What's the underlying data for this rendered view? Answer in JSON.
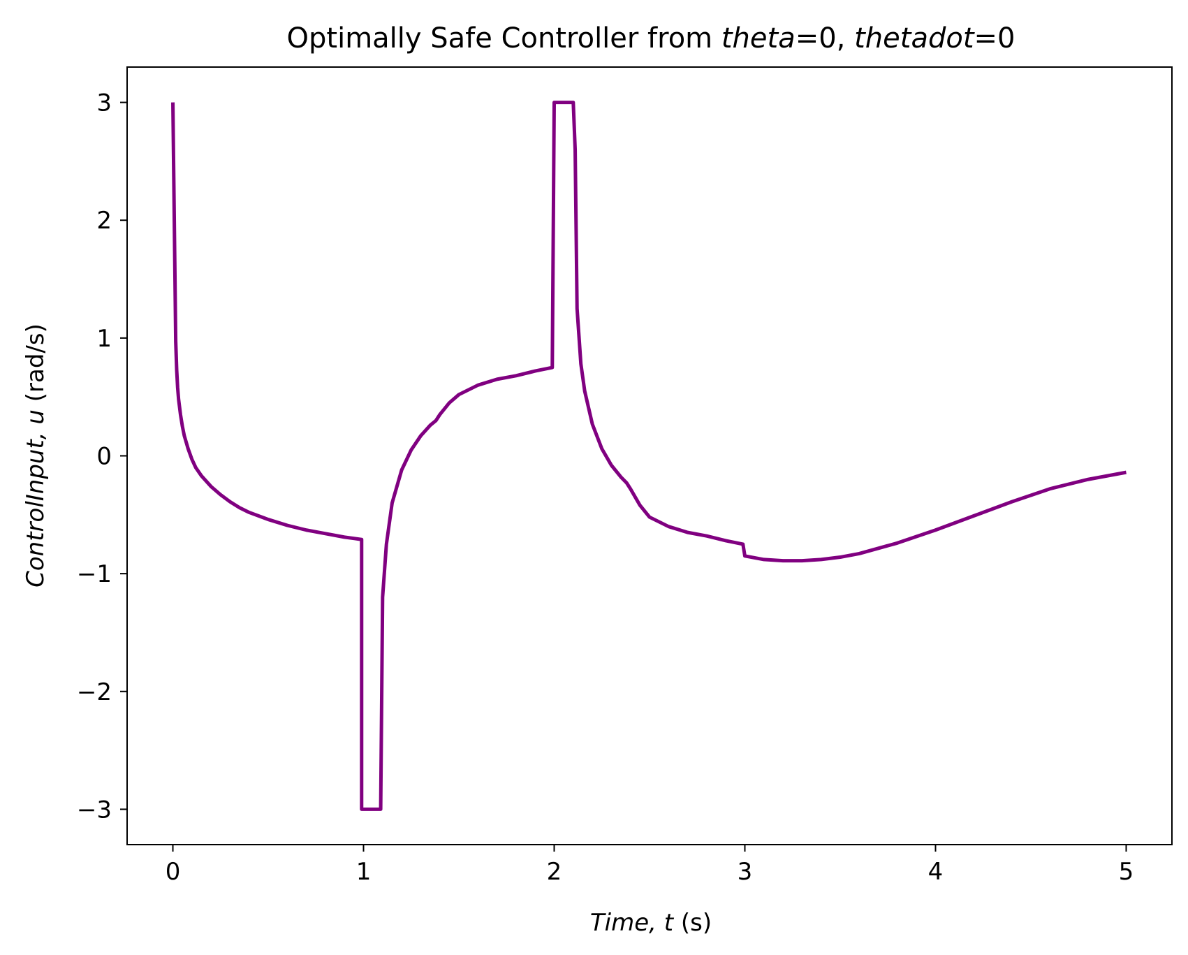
{
  "chart_data": {
    "type": "line",
    "title": {
      "prefix": "Optimally Safe Controller from ",
      "var1": "theta",
      "eq1": "=0, ",
      "var2": "thetadot",
      "eq2": "=0"
    },
    "xlabel": {
      "italic": "Time, t",
      "plain": " (s)"
    },
    "ylabel": {
      "italic": "ControlInput, u",
      "plain": " (rad/s)"
    },
    "xlim": [
      -0.24,
      5.24
    ],
    "ylim": [
      -3.3,
      3.3
    ],
    "xticks": [
      0,
      1,
      2,
      3,
      4,
      5
    ],
    "xtick_labels": [
      "0",
      "1",
      "2",
      "3",
      "4",
      "5"
    ],
    "yticks": [
      3,
      2,
      1,
      0,
      -1,
      -2,
      -3
    ],
    "ytick_labels": [
      "3",
      "2",
      "1",
      "0",
      "−1",
      "−2",
      "−3"
    ],
    "grid": false,
    "line_color": "#800080",
    "series": [
      {
        "x": [
          0.0,
          0.01,
          0.015,
          0.02,
          0.025,
          0.03,
          0.04,
          0.05,
          0.06,
          0.08,
          0.1,
          0.12,
          0.15,
          0.2,
          0.25,
          0.3,
          0.35,
          0.4,
          0.5,
          0.6,
          0.7,
          0.8,
          0.9,
          0.99,
          0.99,
          1.0,
          1.09,
          1.1,
          1.12,
          1.15,
          1.2,
          1.25,
          1.3,
          1.35,
          1.38,
          1.4,
          1.45,
          1.5,
          1.6,
          1.7,
          1.8,
          1.9,
          1.99,
          2.0,
          2.1,
          2.11,
          2.12,
          2.14,
          2.16,
          2.2,
          2.25,
          2.3,
          2.35,
          2.38,
          2.4,
          2.45,
          2.5,
          2.6,
          2.7,
          2.8,
          2.9,
          2.99,
          3.0,
          3.1,
          3.2,
          3.3,
          3.4,
          3.5,
          3.6,
          3.8,
          4.0,
          4.2,
          4.4,
          4.6,
          4.8,
          5.0
        ],
        "y": [
          3.0,
          1.65,
          0.97,
          0.73,
          0.58,
          0.48,
          0.35,
          0.25,
          0.17,
          0.06,
          -0.03,
          -0.1,
          -0.17,
          -0.26,
          -0.33,
          -0.39,
          -0.44,
          -0.48,
          -0.54,
          -0.59,
          -0.63,
          -0.66,
          -0.69,
          -0.71,
          -3.0,
          -3.0,
          -3.0,
          -1.2,
          -0.75,
          -0.4,
          -0.12,
          0.05,
          0.17,
          0.26,
          0.3,
          0.35,
          0.45,
          0.52,
          0.6,
          0.65,
          0.68,
          0.72,
          0.75,
          3.0,
          3.0,
          2.6,
          1.25,
          0.78,
          0.55,
          0.27,
          0.06,
          -0.08,
          -0.18,
          -0.23,
          -0.28,
          -0.42,
          -0.52,
          -0.6,
          -0.65,
          -0.68,
          -0.72,
          -0.75,
          -0.85,
          -0.88,
          -0.89,
          -0.89,
          -0.88,
          -0.86,
          -0.83,
          -0.74,
          -0.63,
          -0.51,
          -0.39,
          -0.28,
          -0.2,
          -0.14
        ]
      }
    ]
  }
}
